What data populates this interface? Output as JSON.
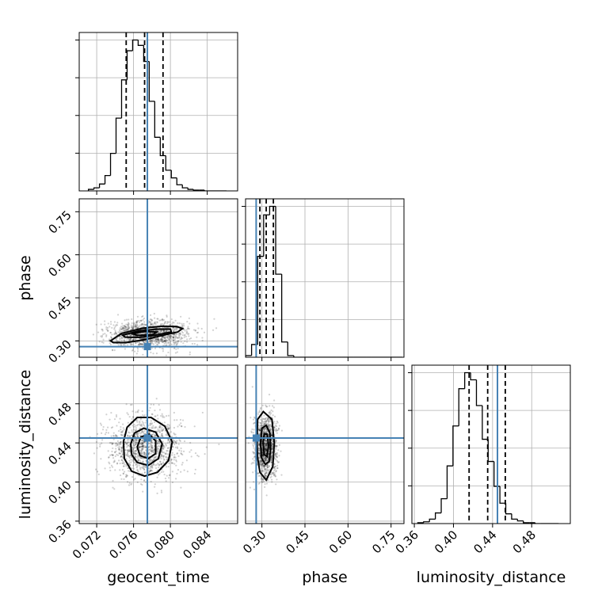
{
  "chart_data": {
    "type": "corner",
    "parameters": [
      "geocent_time",
      "phase",
      "luminosity_distance"
    ],
    "axes": {
      "geocent_time": {
        "label": "geocent_time",
        "range": [
          0.0701,
          0.0873
        ],
        "ticks": [
          0.072,
          0.076,
          0.08,
          0.084
        ],
        "tick_labels": [
          "0.072",
          "0.076",
          "0.080",
          "0.084"
        ]
      },
      "phase": {
        "label": "phase",
        "range": [
          0.243,
          0.795
        ],
        "ticks": [
          0.3,
          0.45,
          0.6,
          0.75
        ],
        "tick_labels": [
          "0.30",
          "0.45",
          "0.60",
          "0.75"
        ]
      },
      "luminosity_distance": {
        "label": "luminosity_distance",
        "range": [
          0.3575,
          0.5195
        ],
        "ticks": [
          0.36,
          0.4,
          0.44,
          0.48
        ],
        "tick_labels": [
          "0.36",
          "0.40",
          "0.44",
          "0.48"
        ]
      }
    },
    "truths": {
      "geocent_time": 0.0775,
      "phase": 0.28,
      "luminosity_distance": 0.445
    },
    "quantiles": {
      "geocent_time": [
        0.0752,
        0.0772,
        0.0792
      ],
      "phase": [
        0.293,
        0.315,
        0.34
      ],
      "luminosity_distance": [
        0.416,
        0.435,
        0.453
      ]
    },
    "histograms": {
      "geocent_time": {
        "edges": [
          0.0711,
          0.0717,
          0.0723,
          0.0729,
          0.0735,
          0.0741,
          0.0747,
          0.0753,
          0.0759,
          0.0765,
          0.0771,
          0.0777,
          0.0783,
          0.0789,
          0.0795,
          0.0801,
          0.0807,
          0.0813,
          0.0819,
          0.0825,
          0.0831,
          0.0837,
          0.0843,
          0.0849,
          0.0855,
          0.0861
        ],
        "counts": [
          2,
          4,
          9,
          20,
          49,
          95,
          145,
          183,
          197,
          190,
          169,
          117,
          70,
          46,
          27,
          17,
          8,
          4,
          2,
          1,
          1,
          0,
          0,
          0,
          0
        ]
      },
      "phase": {
        "edges": [
          0.243,
          0.264,
          0.285,
          0.306,
          0.327,
          0.348,
          0.369,
          0.39,
          0.411,
          0.432,
          0.453,
          0.474,
          0.495,
          0.516,
          0.537,
          0.558,
          0.579,
          0.6,
          0.621,
          0.642,
          0.663,
          0.684,
          0.705,
          0.726,
          0.747,
          0.768,
          0.789
        ],
        "counts": [
          2,
          15,
          119,
          168,
          178,
          98,
          18,
          2,
          0,
          0,
          0,
          0,
          0,
          0,
          0,
          0,
          0,
          0,
          0,
          0,
          0,
          0,
          0,
          0,
          0,
          0
        ]
      },
      "luminosity_distance": {
        "edges": [
          0.3635,
          0.3695,
          0.3755,
          0.3815,
          0.3875,
          0.3935,
          0.3995,
          0.4055,
          0.4115,
          0.4175,
          0.4235,
          0.4295,
          0.4355,
          0.4415,
          0.4475,
          0.4535,
          0.4595,
          0.4655,
          0.4715,
          0.4775,
          0.4835,
          0.4895,
          0.4955,
          0.5015,
          0.5075
        ],
        "counts": [
          1,
          2,
          5,
          12,
          28,
          65,
          110,
          152,
          170,
          162,
          133,
          95,
          70,
          42,
          23,
          11,
          5,
          3,
          1,
          1,
          0,
          0,
          0,
          0
        ]
      }
    },
    "density_2d": [
      {
        "x": "geocent_time",
        "y": "phase",
        "contours": [
          {
            "level": "outer",
            "points": [
              [
                0.0735,
                0.3
              ],
              [
                0.0747,
                0.326
              ],
              [
                0.077,
                0.344
              ],
              [
                0.079,
                0.351
              ],
              [
                0.0807,
                0.35
              ],
              [
                0.0813,
                0.343
              ],
              [
                0.0808,
                0.331
              ],
              [
                0.079,
                0.318
              ],
              [
                0.0772,
                0.304
              ],
              [
                0.0752,
                0.294
              ],
              [
                0.0738,
                0.294
              ]
            ]
          },
          {
            "level": "middle",
            "points": [
              [
                0.0748,
                0.32
              ],
              [
                0.0765,
                0.334
              ],
              [
                0.0785,
                0.341
              ],
              [
                0.08,
                0.341
              ],
              [
                0.0801,
                0.331
              ],
              [
                0.0786,
                0.321
              ],
              [
                0.0766,
                0.312
              ],
              [
                0.0751,
                0.313
              ]
            ]
          },
          {
            "level": "inner",
            "points": [
              [
                0.0759,
                0.325
              ],
              [
                0.0772,
                0.333
              ],
              [
                0.0785,
                0.331
              ],
              [
                0.0781,
                0.322
              ],
              [
                0.0764,
                0.319
              ]
            ]
          }
        ],
        "cloud_center": [
          0.0776,
          0.325
        ],
        "cloud_sigma": [
          0.0022,
          0.025
        ]
      },
      {
        "x": "geocent_time",
        "y": "luminosity_distance",
        "contours": [
          {
            "level": "outer",
            "points": [
              [
                0.0749,
                0.441
              ],
              [
                0.0753,
                0.456
              ],
              [
                0.0764,
                0.466
              ],
              [
                0.0779,
                0.466
              ],
              [
                0.0794,
                0.457
              ],
              [
                0.0802,
                0.441
              ],
              [
                0.0798,
                0.422
              ],
              [
                0.0786,
                0.41
              ],
              [
                0.0772,
                0.406
              ],
              [
                0.0758,
                0.411
              ],
              [
                0.075,
                0.424
              ]
            ]
          },
          {
            "level": "middle",
            "points": [
              [
                0.0757,
                0.439
              ],
              [
                0.0761,
                0.45
              ],
              [
                0.0771,
                0.455
              ],
              [
                0.0784,
                0.451
              ],
              [
                0.0791,
                0.439
              ],
              [
                0.0787,
                0.424
              ],
              [
                0.0776,
                0.417
              ],
              [
                0.0764,
                0.42
              ],
              [
                0.0758,
                0.428
              ]
            ]
          },
          {
            "level": "inner",
            "points": [
              [
                0.0764,
                0.436
              ],
              [
                0.0768,
                0.446
              ],
              [
                0.0777,
                0.449
              ],
              [
                0.0784,
                0.442
              ],
              [
                0.0784,
                0.429
              ],
              [
                0.0776,
                0.424
              ],
              [
                0.0767,
                0.427
              ]
            ]
          }
        ],
        "cloud_center": [
          0.0773,
          0.436
        ],
        "cloud_sigma": [
          0.002,
          0.016
        ]
      },
      {
        "x": "phase",
        "y": "luminosity_distance",
        "contours": [
          {
            "level": "outer",
            "points": [
              [
                0.283,
                0.44
              ],
              [
                0.285,
                0.464
              ],
              [
                0.305,
                0.472
              ],
              [
                0.335,
                0.464
              ],
              [
                0.343,
                0.44
              ],
              [
                0.338,
                0.416
              ],
              [
                0.315,
                0.402
              ],
              [
                0.293,
                0.41
              ],
              [
                0.285,
                0.425
              ]
            ]
          },
          {
            "level": "middle",
            "points": [
              [
                0.295,
                0.44
              ],
              [
                0.3,
                0.455
              ],
              [
                0.315,
                0.458
              ],
              [
                0.328,
                0.45
              ],
              [
                0.33,
                0.432
              ],
              [
                0.325,
                0.421
              ],
              [
                0.312,
                0.418
              ],
              [
                0.298,
                0.425
              ]
            ]
          },
          {
            "level": "inner",
            "points": [
              [
                0.304,
                0.44
              ],
              [
                0.308,
                0.449
              ],
              [
                0.318,
                0.449
              ],
              [
                0.323,
                0.438
              ],
              [
                0.318,
                0.426
              ],
              [
                0.308,
                0.428
              ]
            ]
          }
        ],
        "cloud_center": [
          0.315,
          0.436
        ],
        "cloud_sigma": [
          0.02,
          0.016
        ]
      }
    ],
    "grid": true
  }
}
